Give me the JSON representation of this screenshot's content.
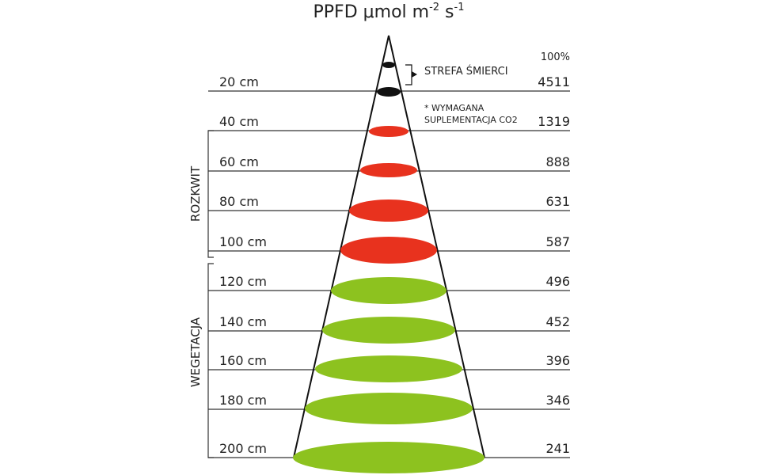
{
  "title": {
    "main": "PPFD μmol m",
    "exp1": "-2",
    "unit2": " s",
    "exp2": "-1"
  },
  "top_percent": "100%",
  "death_zone": "STREFA ŚMIERCI",
  "co2_note": {
    "line1": "* WYMAGANA",
    "line2": "SUPLEMENTACJA CO2"
  },
  "groups": {
    "bloom": "ROZKWIT",
    "vegetation": "WEGETACJA"
  },
  "levels": [
    {
      "distance": "20 cm",
      "ppfd": "4511"
    },
    {
      "distance": "40 cm",
      "ppfd": "1319"
    },
    {
      "distance": "60 cm",
      "ppfd": "888"
    },
    {
      "distance": "80 cm",
      "ppfd": "631"
    },
    {
      "distance": "100 cm",
      "ppfd": "587"
    },
    {
      "distance": "120 cm",
      "ppfd": "496"
    },
    {
      "distance": "140 cm",
      "ppfd": "452"
    },
    {
      "distance": "160 cm",
      "ppfd": "396"
    },
    {
      "distance": "180 cm",
      "ppfd": "346"
    },
    {
      "distance": "200 cm",
      "ppfd": "241"
    }
  ]
}
